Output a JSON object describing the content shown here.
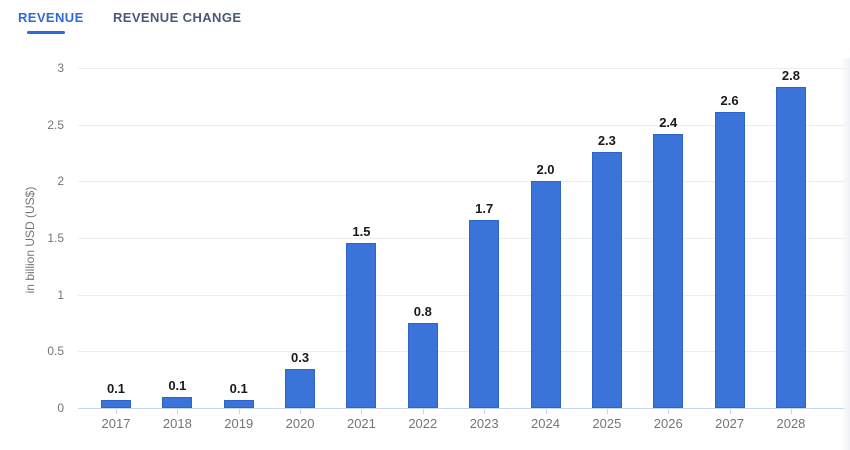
{
  "tabs": [
    {
      "label": "REVENUE",
      "active": true
    },
    {
      "label": "REVENUE CHANGE",
      "active": false
    }
  ],
  "chart_data": {
    "type": "bar",
    "title": "",
    "xlabel": "",
    "ylabel": "in billion USD (US$)",
    "categories": [
      "2017",
      "2018",
      "2019",
      "2020",
      "2021",
      "2022",
      "2023",
      "2024",
      "2025",
      "2026",
      "2027",
      "2028"
    ],
    "values": [
      0.07,
      0.1,
      0.07,
      0.34,
      1.46,
      0.75,
      1.66,
      2.0,
      2.26,
      2.42,
      2.61,
      2.83
    ],
    "value_labels": [
      "0.1",
      "0.1",
      "0.1",
      "0.3",
      "1.5",
      "0.8",
      "1.7",
      "2.0",
      "2.3",
      "2.4",
      "2.6",
      "2.8"
    ],
    "ylim": [
      0,
      3
    ],
    "yticks": [
      0,
      0.5,
      1,
      1.5,
      2,
      2.5,
      3
    ],
    "ytick_labels": [
      "0",
      "0.5",
      "1",
      "1.5",
      "2",
      "2.5",
      "3"
    ],
    "grid": true,
    "legend": false,
    "bar_color": "#3B74D8"
  },
  "colors": {
    "tab_active": "#2E6BD8",
    "tab_inactive": "#4A5A73",
    "bar": "#3B74D8",
    "bar_border": "#2E63C9",
    "gridline": "#EDEDED",
    "axis_line": "#C9D5EE",
    "axis_text": "#757575",
    "value_label": "#1A1A1A"
  }
}
